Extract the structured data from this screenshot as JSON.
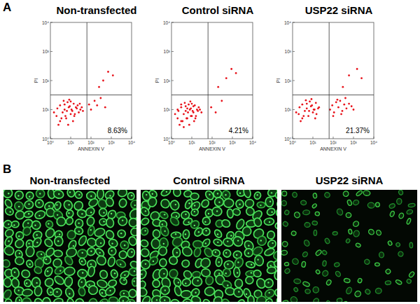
{
  "chart_data": [
    {
      "type": "scatter",
      "title": "Non-transfected",
      "x_label": "ANNEXIN V",
      "y_label": "PI",
      "log": true,
      "grid": false,
      "color": "#e8141c",
      "marker": "dot",
      "xlim": [
        1,
        10000
      ],
      "ylim": [
        1,
        10000
      ],
      "xticks": [
        {
          "value": 1,
          "label": "10⁰"
        },
        {
          "value": 10,
          "label": "10¹"
        },
        {
          "value": 100,
          "label": "10²"
        },
        {
          "value": 1000,
          "label": "10³"
        },
        {
          "value": 10000,
          "label": "10⁴"
        }
      ],
      "yticks": [
        {
          "value": 1,
          "label": "10⁰"
        },
        {
          "value": 10,
          "label": "10¹"
        },
        {
          "value": 100,
          "label": "10²"
        },
        {
          "value": 1000,
          "label": "10³"
        },
        {
          "value": 10000,
          "label": "10⁴"
        }
      ],
      "quadrant_x": 63,
      "quadrant_y": 32,
      "annotation": "8.63%",
      "x": [
        2,
        3,
        4,
        5,
        6,
        8,
        10,
        12,
        15,
        20,
        25,
        3,
        5,
        7,
        9,
        11,
        14,
        18,
        2.5,
        4.5,
        6.5,
        8.5,
        13,
        16,
        22,
        30,
        1.5,
        2.2,
        3.5,
        5.5,
        7.5,
        10,
        28,
        35,
        40,
        80,
        100,
        150,
        200,
        300,
        500,
        250,
        400,
        700,
        1200
      ],
      "values": [
        6,
        4,
        8,
        10,
        5,
        12,
        7,
        9,
        6,
        11,
        8,
        14,
        15,
        18,
        13,
        10,
        16,
        12,
        3,
        20,
        9,
        22,
        4,
        7,
        14,
        10,
        8,
        11,
        5,
        6,
        3,
        19,
        16,
        12,
        9,
        15,
        10,
        20,
        14,
        25,
        12,
        60,
        100,
        200,
        150
      ]
    },
    {
      "type": "scatter",
      "title": "Control siRNA",
      "x_label": "ANNEXIN V",
      "y_label": "PI",
      "log": true,
      "grid": false,
      "color": "#e8141c",
      "marker": "dot",
      "xlim": [
        1,
        10000
      ],
      "ylim": [
        1,
        10000
      ],
      "xticks": [
        {
          "value": 1,
          "label": "10⁰"
        },
        {
          "value": 10,
          "label": "10¹"
        },
        {
          "value": 100,
          "label": "10²"
        },
        {
          "value": 1000,
          "label": "10³"
        },
        {
          "value": 10000,
          "label": "10⁴"
        }
      ],
      "yticks": [
        {
          "value": 1,
          "label": "10⁰"
        },
        {
          "value": 10,
          "label": "10¹"
        },
        {
          "value": 100,
          "label": "10²"
        },
        {
          "value": 1000,
          "label": "10³"
        },
        {
          "value": 10000,
          "label": "10⁴"
        }
      ],
      "quadrant_x": 63,
      "quadrant_y": 32,
      "annotation": "4.21%",
      "x": [
        2,
        3,
        4,
        5,
        6,
        8,
        10,
        12,
        15,
        20,
        3,
        5,
        7,
        9,
        11,
        14,
        18,
        2.5,
        4.5,
        6.5,
        8.5,
        13,
        16,
        22,
        1.5,
        2.2,
        3.5,
        5.5,
        7.5,
        10,
        25,
        30,
        4,
        6,
        9,
        12,
        2,
        3,
        90,
        150,
        300,
        200,
        500,
        900,
        1500
      ],
      "values": [
        5,
        4,
        7,
        9,
        5,
        10,
        6,
        8,
        5,
        9,
        12,
        13,
        15,
        11,
        9,
        14,
        10,
        3,
        17,
        8,
        19,
        4,
        6,
        12,
        7,
        9,
        4,
        5,
        3,
        16,
        10,
        8,
        2.5,
        11,
        6,
        13,
        10,
        15,
        12,
        8,
        20,
        60,
        120,
        250,
        180
      ]
    },
    {
      "type": "scatter",
      "title": "USP22 siRNA",
      "x_label": "ANNEXIN V",
      "y_label": "PI",
      "log": true,
      "grid": false,
      "color": "#e8141c",
      "marker": "dot",
      "xlim": [
        1,
        10000
      ],
      "ylim": [
        1,
        10000
      ],
      "xticks": [
        {
          "value": 1,
          "label": "10⁰"
        },
        {
          "value": 10,
          "label": "10¹"
        },
        {
          "value": 100,
          "label": "10²"
        },
        {
          "value": 1000,
          "label": "10³"
        },
        {
          "value": 10000,
          "label": "10⁴"
        }
      ],
      "yticks": [
        {
          "value": 1,
          "label": "10⁰"
        },
        {
          "value": 10,
          "label": "10¹"
        },
        {
          "value": 100,
          "label": "10²"
        },
        {
          "value": 1000,
          "label": "10³"
        },
        {
          "value": 10000,
          "label": "10⁴"
        }
      ],
      "quadrant_x": 63,
      "quadrant_y": 32,
      "annotation": "21.37%",
      "x": [
        2,
        3,
        4,
        5,
        6,
        8,
        10,
        12,
        15,
        20,
        3,
        5,
        7,
        9,
        11,
        14,
        18,
        2.5,
        4.5,
        6.5,
        8.5,
        13,
        1.5,
        2.2,
        3.5,
        70,
        90,
        110,
        140,
        180,
        220,
        280,
        350,
        450,
        600,
        800,
        100,
        160,
        250,
        400,
        1000,
        300,
        600,
        1500,
        2500
      ],
      "values": [
        7,
        5,
        9,
        11,
        6,
        13,
        8,
        10,
        7,
        12,
        15,
        16,
        19,
        14,
        10,
        17,
        11,
        4,
        21,
        9,
        23,
        5,
        8,
        12,
        6,
        10,
        14,
        8,
        18,
        12,
        20,
        9,
        15,
        11,
        16,
        13,
        6,
        22,
        7,
        25,
        10,
        60,
        150,
        250,
        120
      ]
    }
  ],
  "figure": {
    "panel_labels": [
      "A",
      "B"
    ],
    "image_titles": [
      "Non-transfected",
      "Control siRNA",
      "USP22 siRNA"
    ]
  }
}
